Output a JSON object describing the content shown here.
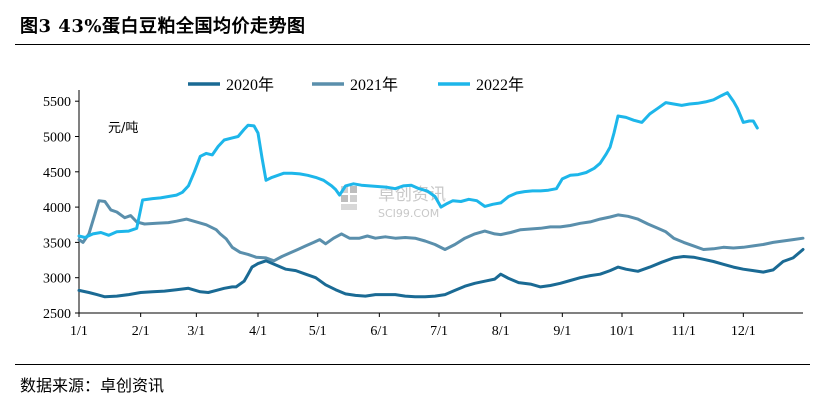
{
  "figure_title": "图3 43%蛋白豆粕全国均价走势图",
  "source_text": "数据来源：卓创资讯",
  "watermark": {
    "name": "卓创资讯",
    "url": "SCI99.COM"
  },
  "chart_data": {
    "type": "line",
    "unit_label": "元/吨",
    "ylim": [
      2500,
      5800
    ],
    "yticks": [
      2500,
      3000,
      3500,
      4000,
      4500,
      5000,
      5500
    ],
    "xlim": [
      1,
      365
    ],
    "x_ticks": [
      {
        "label": "1/1",
        "day": 1
      },
      {
        "label": "2/1",
        "day": 32
      },
      {
        "label": "3/1",
        "day": 60
      },
      {
        "label": "4/1",
        "day": 91
      },
      {
        "label": "5/1",
        "day": 121
      },
      {
        "label": "6/1",
        "day": 152
      },
      {
        "label": "7/1",
        "day": 182
      },
      {
        "label": "8/1",
        "day": 213
      },
      {
        "label": "9/1",
        "day": 244
      },
      {
        "label": "10/1",
        "day": 274
      },
      {
        "label": "11/1",
        "day": 305
      },
      {
        "label": "12/1",
        "day": 335
      }
    ],
    "legend_position": "top",
    "series": [
      {
        "name": "2020年",
        "color": "#1a6a94",
        "points": [
          [
            1,
            2820
          ],
          [
            6,
            2790
          ],
          [
            10,
            2760
          ],
          [
            14,
            2730
          ],
          [
            20,
            2740
          ],
          [
            26,
            2760
          ],
          [
            32,
            2790
          ],
          [
            38,
            2800
          ],
          [
            44,
            2810
          ],
          [
            50,
            2830
          ],
          [
            56,
            2850
          ],
          [
            62,
            2800
          ],
          [
            66,
            2790
          ],
          [
            70,
            2820
          ],
          [
            74,
            2850
          ],
          [
            78,
            2870
          ],
          [
            80,
            2870
          ],
          [
            84,
            2950
          ],
          [
            86,
            3050
          ],
          [
            88,
            3150
          ],
          [
            91,
            3200
          ],
          [
            95,
            3240
          ],
          [
            100,
            3180
          ],
          [
            105,
            3120
          ],
          [
            110,
            3100
          ],
          [
            115,
            3050
          ],
          [
            120,
            3000
          ],
          [
            125,
            2900
          ],
          [
            130,
            2830
          ],
          [
            135,
            2770
          ],
          [
            140,
            2750
          ],
          [
            145,
            2740
          ],
          [
            150,
            2760
          ],
          [
            155,
            2760
          ],
          [
            160,
            2760
          ],
          [
            165,
            2740
          ],
          [
            170,
            2730
          ],
          [
            175,
            2730
          ],
          [
            180,
            2740
          ],
          [
            185,
            2760
          ],
          [
            190,
            2820
          ],
          [
            195,
            2880
          ],
          [
            200,
            2920
          ],
          [
            205,
            2950
          ],
          [
            210,
            2980
          ],
          [
            213,
            3050
          ],
          [
            217,
            2990
          ],
          [
            222,
            2930
          ],
          [
            228,
            2910
          ],
          [
            233,
            2870
          ],
          [
            238,
            2890
          ],
          [
            243,
            2920
          ],
          [
            248,
            2960
          ],
          [
            253,
            3000
          ],
          [
            258,
            3030
          ],
          [
            263,
            3050
          ],
          [
            268,
            3100
          ],
          [
            272,
            3150
          ],
          [
            276,
            3120
          ],
          [
            282,
            3090
          ],
          [
            288,
            3150
          ],
          [
            294,
            3220
          ],
          [
            300,
            3280
          ],
          [
            305,
            3300
          ],
          [
            310,
            3290
          ],
          [
            315,
            3260
          ],
          [
            320,
            3230
          ],
          [
            325,
            3190
          ],
          [
            330,
            3150
          ],
          [
            335,
            3120
          ],
          [
            340,
            3100
          ],
          [
            345,
            3080
          ],
          [
            350,
            3110
          ],
          [
            355,
            3230
          ],
          [
            360,
            3280
          ],
          [
            365,
            3400
          ]
        ]
      },
      {
        "name": "2021年",
        "color": "#5a8fac",
        "points": [
          [
            1,
            3540
          ],
          [
            3,
            3500
          ],
          [
            6,
            3620
          ],
          [
            9,
            3900
          ],
          [
            11,
            4090
          ],
          [
            14,
            4080
          ],
          [
            17,
            3960
          ],
          [
            20,
            3930
          ],
          [
            24,
            3850
          ],
          [
            27,
            3880
          ],
          [
            30,
            3790
          ],
          [
            34,
            3760
          ],
          [
            40,
            3770
          ],
          [
            46,
            3780
          ],
          [
            50,
            3800
          ],
          [
            55,
            3830
          ],
          [
            60,
            3790
          ],
          [
            65,
            3750
          ],
          [
            70,
            3680
          ],
          [
            72,
            3620
          ],
          [
            75,
            3550
          ],
          [
            78,
            3430
          ],
          [
            82,
            3360
          ],
          [
            86,
            3330
          ],
          [
            90,
            3290
          ],
          [
            95,
            3280
          ],
          [
            99,
            3240
          ],
          [
            103,
            3300
          ],
          [
            107,
            3350
          ],
          [
            111,
            3400
          ],
          [
            115,
            3450
          ],
          [
            119,
            3500
          ],
          [
            122,
            3540
          ],
          [
            125,
            3480
          ],
          [
            129,
            3560
          ],
          [
            133,
            3620
          ],
          [
            137,
            3560
          ],
          [
            142,
            3560
          ],
          [
            146,
            3590
          ],
          [
            150,
            3560
          ],
          [
            155,
            3580
          ],
          [
            160,
            3560
          ],
          [
            165,
            3570
          ],
          [
            170,
            3560
          ],
          [
            175,
            3520
          ],
          [
            180,
            3470
          ],
          [
            185,
            3400
          ],
          [
            190,
            3470
          ],
          [
            195,
            3560
          ],
          [
            200,
            3620
          ],
          [
            205,
            3660
          ],
          [
            210,
            3620
          ],
          [
            213,
            3610
          ],
          [
            218,
            3640
          ],
          [
            223,
            3680
          ],
          [
            228,
            3690
          ],
          [
            233,
            3700
          ],
          [
            238,
            3720
          ],
          [
            243,
            3720
          ],
          [
            248,
            3740
          ],
          [
            253,
            3770
          ],
          [
            258,
            3790
          ],
          [
            263,
            3830
          ],
          [
            268,
            3860
          ],
          [
            272,
            3890
          ],
          [
            277,
            3870
          ],
          [
            282,
            3830
          ],
          [
            287,
            3760
          ],
          [
            292,
            3700
          ],
          [
            296,
            3650
          ],
          [
            300,
            3560
          ],
          [
            305,
            3500
          ],
          [
            310,
            3450
          ],
          [
            315,
            3400
          ],
          [
            320,
            3410
          ],
          [
            325,
            3430
          ],
          [
            330,
            3420
          ],
          [
            335,
            3430
          ],
          [
            340,
            3450
          ],
          [
            345,
            3470
          ],
          [
            350,
            3500
          ],
          [
            355,
            3520
          ],
          [
            360,
            3540
          ],
          [
            365,
            3560
          ]
        ]
      },
      {
        "name": "2022年",
        "color": "#1db6ea",
        "points": [
          [
            1,
            3590
          ],
          [
            4,
            3570
          ],
          [
            8,
            3620
          ],
          [
            12,
            3640
          ],
          [
            16,
            3600
          ],
          [
            20,
            3650
          ],
          [
            26,
            3660
          ],
          [
            30,
            3700
          ],
          [
            33,
            4100
          ],
          [
            38,
            4120
          ],
          [
            42,
            4130
          ],
          [
            46,
            4150
          ],
          [
            50,
            4170
          ],
          [
            53,
            4210
          ],
          [
            56,
            4300
          ],
          [
            59,
            4500
          ],
          [
            62,
            4720
          ],
          [
            65,
            4760
          ],
          [
            68,
            4740
          ],
          [
            71,
            4860
          ],
          [
            74,
            4950
          ],
          [
            78,
            4980
          ],
          [
            81,
            5000
          ],
          [
            84,
            5100
          ],
          [
            86,
            5160
          ],
          [
            89,
            5150
          ],
          [
            91,
            5050
          ],
          [
            93,
            4700
          ],
          [
            95,
            4380
          ],
          [
            98,
            4420
          ],
          [
            101,
            4450
          ],
          [
            104,
            4480
          ],
          [
            108,
            4480
          ],
          [
            112,
            4470
          ],
          [
            116,
            4450
          ],
          [
            120,
            4420
          ],
          [
            124,
            4380
          ],
          [
            128,
            4300
          ],
          [
            130,
            4250
          ],
          [
            132,
            4170
          ],
          [
            135,
            4300
          ],
          [
            139,
            4330
          ],
          [
            143,
            4310
          ],
          [
            147,
            4300
          ],
          [
            152,
            4290
          ],
          [
            156,
            4280
          ],
          [
            160,
            4260
          ],
          [
            164,
            4300
          ],
          [
            168,
            4310
          ],
          [
            172,
            4260
          ],
          [
            176,
            4230
          ],
          [
            180,
            4150
          ],
          [
            183,
            4000
          ],
          [
            186,
            4050
          ],
          [
            189,
            4090
          ],
          [
            193,
            4080
          ],
          [
            197,
            4110
          ],
          [
            201,
            4090
          ],
          [
            205,
            4010
          ],
          [
            209,
            4040
          ],
          [
            213,
            4060
          ],
          [
            217,
            4150
          ],
          [
            221,
            4200
          ],
          [
            225,
            4220
          ],
          [
            229,
            4230
          ],
          [
            233,
            4230
          ],
          [
            237,
            4240
          ],
          [
            241,
            4260
          ],
          [
            244,
            4400
          ],
          [
            248,
            4450
          ],
          [
            252,
            4460
          ],
          [
            256,
            4490
          ],
          [
            260,
            4550
          ],
          [
            263,
            4620
          ],
          [
            266,
            4750
          ],
          [
            268,
            4850
          ],
          [
            270,
            5050
          ],
          [
            272,
            5290
          ],
          [
            276,
            5270
          ],
          [
            280,
            5230
          ],
          [
            284,
            5200
          ],
          [
            288,
            5320
          ],
          [
            292,
            5400
          ],
          [
            296,
            5480
          ],
          [
            300,
            5460
          ],
          [
            304,
            5440
          ],
          [
            308,
            5460
          ],
          [
            312,
            5470
          ],
          [
            316,
            5490
          ],
          [
            320,
            5520
          ],
          [
            324,
            5580
          ],
          [
            327,
            5620
          ],
          [
            330,
            5500
          ],
          [
            332,
            5400
          ],
          [
            335,
            5200
          ],
          [
            338,
            5220
          ],
          [
            340,
            5220
          ],
          [
            342,
            5120
          ]
        ]
      }
    ]
  }
}
